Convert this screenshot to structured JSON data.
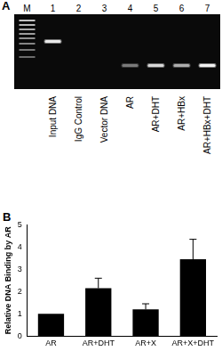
{
  "panel_labels": [
    "A",
    "B"
  ],
  "gel": {
    "marker_lane": "M",
    "lanes": [
      {
        "number": "1",
        "label": "Input DNA",
        "band": 0.85
      },
      {
        "number": "2",
        "label": "IgG Control",
        "band": 0
      },
      {
        "number": "3",
        "label": "Vector DNA",
        "band": 0
      },
      {
        "number": "4",
        "label": "AR",
        "band": 0.35
      },
      {
        "number": "5",
        "label": "AR+DHT",
        "band": 0.75
      },
      {
        "number": "6",
        "label": "AR+HBx",
        "band": 0.55
      },
      {
        "number": "7",
        "label": "AR+HBx+DHT",
        "band": 0.9
      }
    ]
  },
  "chart_data": {
    "type": "bar",
    "y_label": "Relative DNA Binding by AR",
    "categories": [
      "AR",
      "AR+DHT",
      "AR+X",
      "AR+X+DHT"
    ],
    "values": [
      1,
      2.15,
      1.2,
      3.45
    ],
    "errors": [
      0,
      0.45,
      0.25,
      0.9
    ],
    "color": "#000000",
    "ylim": [
      0,
      5
    ],
    "yticks": [
      0,
      1,
      2,
      3,
      4,
      5
    ],
    "grid": false
  }
}
